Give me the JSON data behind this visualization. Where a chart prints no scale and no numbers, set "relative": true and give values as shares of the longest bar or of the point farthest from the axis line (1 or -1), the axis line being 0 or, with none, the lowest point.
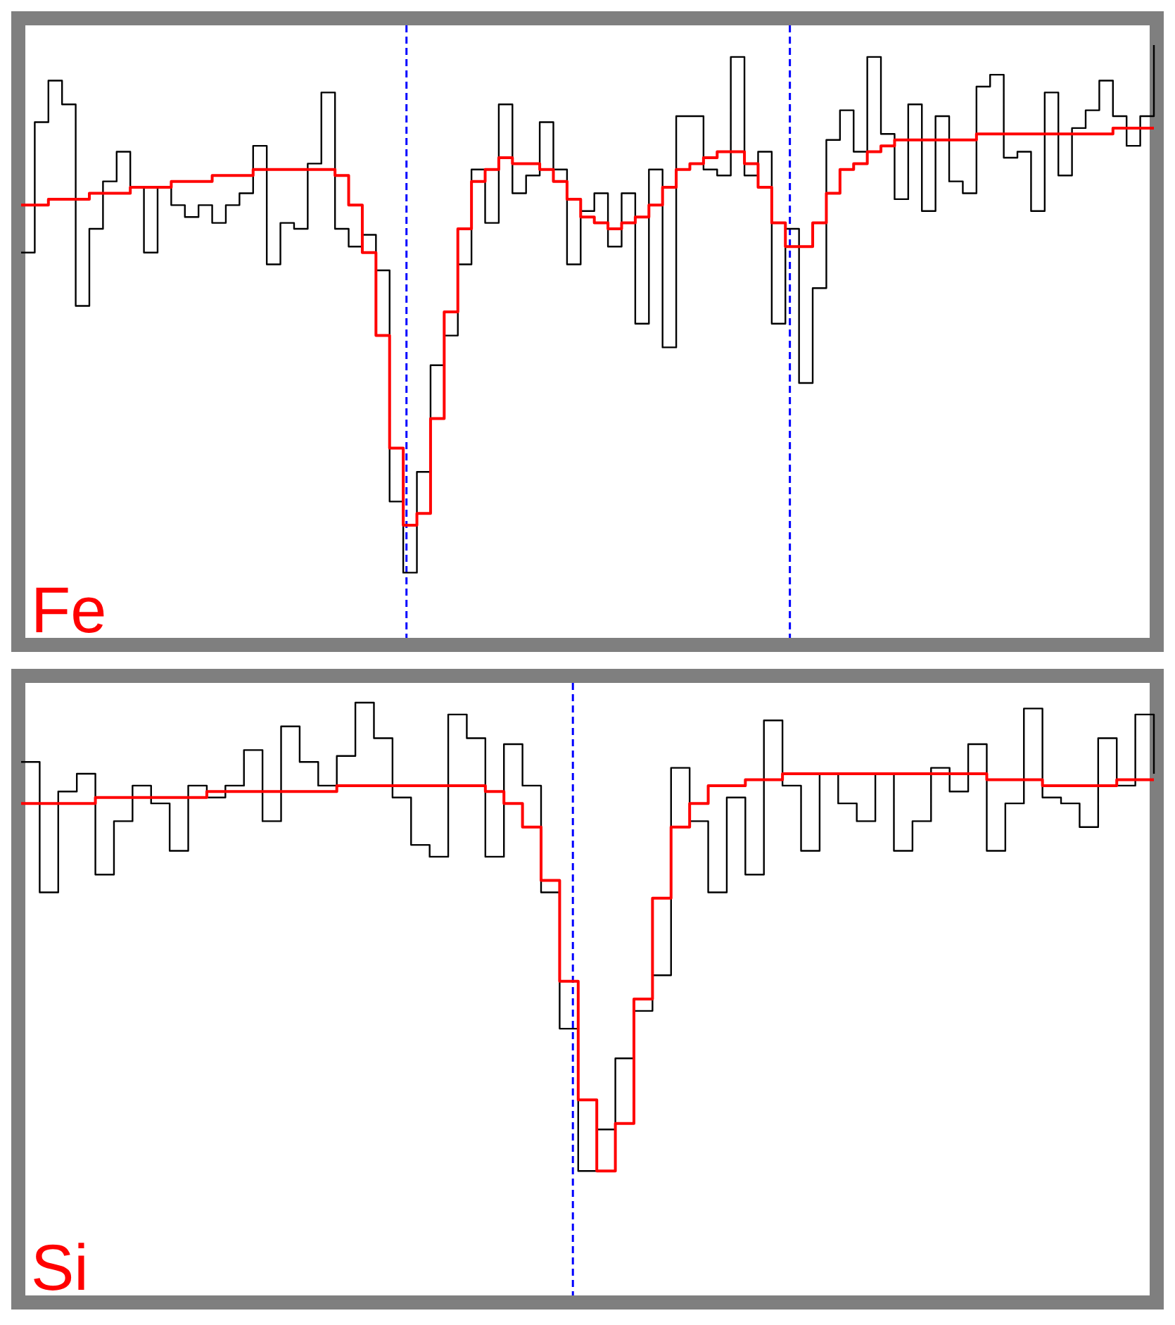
{
  "chart_data": [
    {
      "type": "step",
      "relative": true,
      "annotations": [
        "Fe"
      ],
      "categories": [
        null,
        null,
        null,
        null,
        null,
        null,
        null,
        null,
        null,
        null,
        null,
        null,
        null,
        null,
        null,
        null,
        null,
        null,
        null,
        null,
        null,
        null,
        null,
        null,
        null,
        null,
        null,
        null,
        null,
        null,
        null,
        null,
        null,
        null,
        null,
        null,
        null,
        null,
        null,
        null,
        null,
        null,
        null,
        null,
        null,
        null,
        null,
        null,
        null,
        null,
        null,
        null,
        null,
        null,
        null,
        null,
        null,
        null,
        null,
        null,
        null,
        null,
        null,
        null,
        null,
        null,
        null,
        null,
        null,
        null,
        null,
        null,
        null,
        null,
        null,
        null,
        null,
        null,
        null,
        null,
        null,
        null,
        null,
        null
      ],
      "series": [
        {
          "color": "#000000",
          "values": [
            0.65,
            0.87,
            0.94,
            0.9,
            0.56,
            0.69,
            0.77,
            0.82,
            0.76,
            0.65,
            0.76,
            0.73,
            0.71,
            0.73,
            0.7,
            0.73,
            0.75,
            0.83,
            0.63,
            0.7,
            0.69,
            0.8,
            0.92,
            0.69,
            0.66,
            0.68,
            0.62,
            0.23,
            0.11,
            0.28,
            0.46,
            0.51,
            0.63,
            0.79,
            0.7,
            0.9,
            0.75,
            0.78,
            0.87,
            0.79,
            0.63,
            0.72,
            0.75,
            0.66,
            0.75,
            0.53,
            0.79,
            0.49,
            0.88,
            0.88,
            0.79,
            0.78,
            0.98,
            0.78,
            0.82,
            0.53,
            0.69,
            0.43,
            0.59,
            0.84,
            0.89,
            0.82,
            0.98,
            0.85,
            0.74,
            0.9,
            0.72,
            0.88,
            0.77,
            0.75,
            0.93,
            0.95,
            0.81,
            0.82,
            0.72,
            0.92,
            0.78,
            0.86,
            0.89,
            0.94,
            0.88,
            0.83,
            0.88,
            1
          ]
        },
        {
          "color": "#ff0000",
          "values": [
            0.73,
            0.73,
            0.74,
            0.74,
            0.74,
            0.75,
            0.75,
            0.75,
            0.76,
            0.76,
            0.76,
            0.77,
            0.77,
            0.77,
            0.78,
            0.78,
            0.78,
            0.79,
            0.79,
            0.79,
            0.79,
            0.79,
            0.79,
            0.78,
            0.73,
            0.65,
            0.51,
            0.32,
            0.19,
            0.21,
            0.37,
            0.55,
            0.69,
            0.77,
            0.79,
            0.81,
            0.8,
            0.8,
            0.79,
            0.77,
            0.74,
            0.71,
            0.7,
            0.69,
            0.7,
            0.71,
            0.73,
            0.76,
            0.79,
            0.8,
            0.81,
            0.82,
            0.82,
            0.8,
            0.76,
            0.7,
            0.66,
            0.66,
            0.7,
            0.75,
            0.79,
            0.8,
            0.82,
            0.83,
            0.84,
            0.84,
            0.84,
            0.84,
            0.84,
            0.84,
            0.85,
            0.85,
            0.85,
            0.85,
            0.85,
            0.85,
            0.85,
            0.85,
            0.85,
            0.85,
            0.86,
            0.86,
            0.86,
            0.86
          ]
        }
      ]
    },
    {
      "type": "step",
      "relative": true,
      "annotations": [
        "Si"
      ],
      "categories": [
        null,
        null,
        null,
        null,
        null,
        null,
        null,
        null,
        null,
        null,
        null,
        null,
        null,
        null,
        null,
        null,
        null,
        null,
        null,
        null,
        null,
        null,
        null,
        null,
        null,
        null,
        null,
        null,
        null,
        null,
        null,
        null,
        null,
        null,
        null,
        null,
        null,
        null,
        null,
        null,
        null,
        null,
        null,
        null,
        null,
        null,
        null,
        null,
        null,
        null,
        null,
        null,
        null,
        null,
        null,
        null,
        null,
        null,
        null,
        null,
        null,
        null
      ],
      "series": [
        {
          "color": "#000000",
          "values": [
            0.9,
            0.68,
            0.85,
            0.88,
            0.71,
            0.8,
            0.86,
            0.83,
            0.75,
            0.86,
            0.84,
            0.86,
            0.92,
            0.8,
            0.96,
            0.9,
            0.86,
            0.91,
            1,
            0.94,
            0.84,
            0.76,
            0.74,
            0.98,
            0.94,
            0.74,
            0.93,
            0.86,
            0.68,
            0.45,
            0.21,
            0.28,
            0.4,
            0.48,
            0.54,
            0.89,
            0.8,
            0.68,
            0.84,
            0.71,
            0.97,
            0.86,
            0.75,
            0.88,
            0.83,
            0.8,
            0.88,
            0.75,
            0.8,
            0.89,
            0.85,
            0.93,
            0.75,
            0.83,
            0.99,
            0.84,
            0.83,
            0.79,
            0.94,
            0.86,
            0.98,
            0.88
          ]
        },
        {
          "color": "#ff0000",
          "values": [
            0.83,
            0.83,
            0.83,
            0.83,
            0.84,
            0.84,
            0.84,
            0.84,
            0.84,
            0.84,
            0.85,
            0.85,
            0.85,
            0.85,
            0.85,
            0.85,
            0.85,
            0.86,
            0.86,
            0.86,
            0.86,
            0.86,
            0.86,
            0.86,
            0.86,
            0.85,
            0.83,
            0.79,
            0.7,
            0.53,
            0.33,
            0.21,
            0.29,
            0.5,
            0.67,
            0.79,
            0.83,
            0.86,
            0.86,
            0.87,
            0.87,
            0.88,
            0.88,
            0.88,
            0.88,
            0.88,
            0.88,
            0.88,
            0.88,
            0.88,
            0.88,
            0.88,
            0.87,
            0.87,
            0.87,
            0.86,
            0.86,
            0.86,
            0.86,
            0.87,
            0.87,
            0.87
          ]
        }
      ]
    }
  ]
}
